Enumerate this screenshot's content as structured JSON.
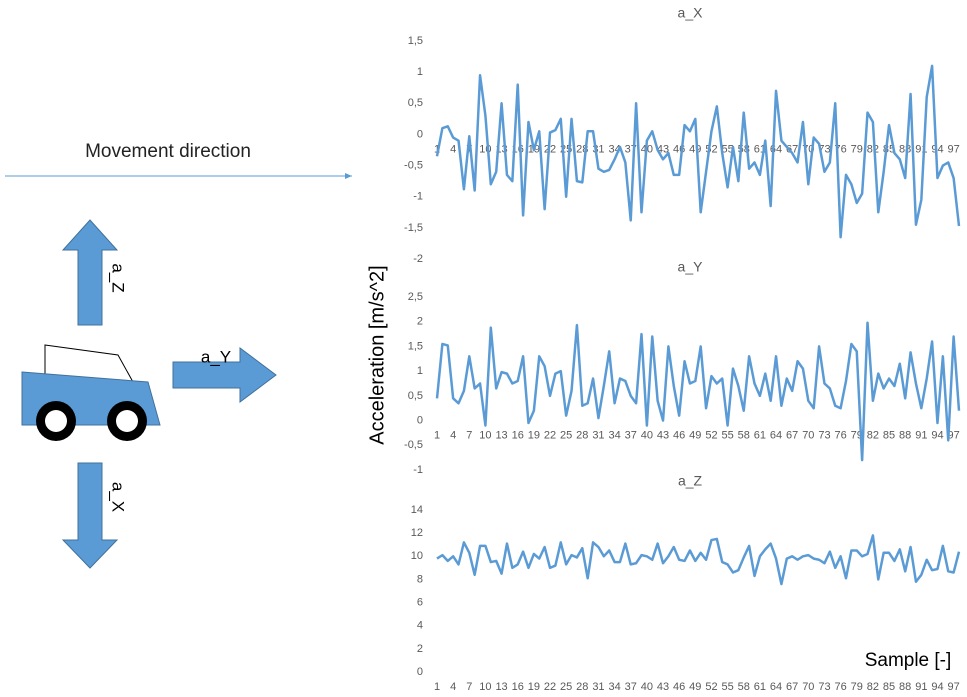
{
  "diagram": {
    "movement_label": "Movement direction",
    "arrows": [
      "a_Z",
      "a_Y",
      "a_X"
    ]
  },
  "chart_data": [
    {
      "type": "line",
      "title": "a_X",
      "color": "#5b9bd5",
      "grid": false,
      "categories": [
        1,
        null,
        null,
        4,
        null,
        null,
        7,
        null,
        null,
        10,
        null,
        null,
        13,
        null,
        null,
        16,
        null,
        null,
        19,
        null,
        null,
        22,
        null,
        null,
        25,
        null,
        null,
        28,
        null,
        null,
        31,
        null,
        null,
        34,
        null,
        null,
        37,
        null,
        null,
        40,
        null,
        null,
        43,
        null,
        null,
        46,
        null,
        null,
        49,
        null,
        null,
        52,
        null,
        null,
        55,
        null,
        null,
        58,
        null,
        null,
        61,
        null,
        null,
        64,
        null,
        null,
        67,
        null,
        null,
        70,
        null,
        null,
        73,
        null,
        null,
        76,
        null,
        null,
        79,
        null,
        null,
        82,
        null,
        null,
        85,
        null,
        null,
        88,
        null,
        null,
        91,
        null,
        null,
        94,
        null,
        null,
        97,
        null
      ],
      "values": [
        -0.35,
        0.1,
        0.13,
        -0.05,
        -0.1,
        -0.88,
        -0.03,
        -0.9,
        0.95,
        0.3,
        -0.8,
        -0.6,
        0.5,
        -0.65,
        -0.75,
        0.8,
        -1.3,
        0.2,
        -0.25,
        0.05,
        -1.2,
        0.03,
        0.07,
        0.25,
        -1.0,
        0.25,
        -0.75,
        -0.77,
        0.05,
        0.05,
        -0.55,
        -0.6,
        -0.57,
        -0.4,
        -0.2,
        -0.45,
        -1.38,
        0.5,
        -1.25,
        -0.1,
        0.05,
        -0.25,
        -0.4,
        -0.3,
        -0.65,
        -0.65,
        0.15,
        0.05,
        0.25,
        -1.25,
        -0.6,
        0.05,
        0.45,
        -0.3,
        -0.85,
        -0.2,
        -0.75,
        0.35,
        -0.55,
        -0.45,
        -0.65,
        -0.1,
        -1.15,
        0.7,
        -0.1,
        -0.2,
        -0.3,
        -0.45,
        0.2,
        -0.8,
        -0.05,
        -0.15,
        -0.6,
        -0.45,
        0.5,
        -1.65,
        -0.65,
        -0.8,
        -1.1,
        -0.95,
        0.35,
        0.2,
        -1.25,
        -0.6,
        0.15,
        -0.3,
        -0.4,
        -0.7,
        0.65,
        -1.45,
        -1.05,
        0.6,
        1.1,
        -0.7,
        -0.5,
        -0.45,
        -0.7,
        -1.47
      ],
      "ylim": [
        -2,
        1.5
      ],
      "yticks": [
        -2,
        {
          "value": -1.5,
          "label": "-1,5"
        },
        -1,
        {
          "value": -0.5,
          "label": "-0,5"
        },
        0,
        {
          "value": 0.5,
          "label": "0,5"
        },
        1,
        {
          "value": 1.5,
          "label": "1,5"
        }
      ]
    },
    {
      "type": "line",
      "title": "a_Y",
      "color": "#5b9bd5",
      "grid": false,
      "ylabel": "Acceleration [m/s^2]",
      "categories": [
        1,
        null,
        null,
        4,
        null,
        null,
        7,
        null,
        null,
        10,
        null,
        null,
        13,
        null,
        null,
        16,
        null,
        null,
        19,
        null,
        null,
        22,
        null,
        null,
        25,
        null,
        null,
        28,
        null,
        null,
        31,
        null,
        null,
        34,
        null,
        null,
        37,
        null,
        null,
        40,
        null,
        null,
        43,
        null,
        null,
        46,
        null,
        null,
        49,
        null,
        null,
        52,
        null,
        null,
        55,
        null,
        null,
        58,
        null,
        null,
        61,
        null,
        null,
        64,
        null,
        null,
        67,
        null,
        null,
        70,
        null,
        null,
        73,
        null,
        null,
        76,
        null,
        null,
        79,
        null,
        null,
        82,
        null,
        null,
        85,
        null,
        null,
        88,
        null,
        null,
        91,
        null,
        null,
        94,
        null,
        null,
        97,
        null
      ],
      "values": [
        0.45,
        1.55,
        1.52,
        0.45,
        0.35,
        0.6,
        1.3,
        0.65,
        0.75,
        -0.1,
        1.88,
        0.65,
        0.98,
        0.95,
        0.75,
        0.8,
        1.3,
        -0.05,
        0.2,
        1.3,
        1.1,
        0.5,
        0.95,
        1.0,
        0.1,
        0.6,
        1.93,
        0.3,
        0.35,
        0.85,
        0.05,
        0.7,
        1.4,
        0.35,
        0.85,
        0.8,
        0.5,
        0.35,
        1.75,
        -0.1,
        1.7,
        0.4,
        0.0,
        1.5,
        0.7,
        0.1,
        1.2,
        0.75,
        0.8,
        1.5,
        0.25,
        0.9,
        0.75,
        0.85,
        -0.1,
        1.05,
        0.7,
        0.2,
        1.3,
        0.75,
        0.5,
        0.95,
        0.4,
        1.3,
        0.3,
        0.85,
        0.6,
        1.2,
        1.05,
        0.4,
        0.25,
        1.5,
        0.75,
        0.65,
        0.3,
        0.25,
        0.8,
        1.55,
        1.4,
        -0.8,
        1.98,
        0.4,
        0.95,
        0.65,
        0.85,
        0.7,
        1.15,
        0.45,
        1.38,
        0.75,
        0.25,
        0.85,
        1.6,
        -0.05,
        1.3,
        -0.4,
        1.7,
        0.2
      ],
      "ylim": [
        -1,
        2.5
      ],
      "yticks": [
        -1,
        {
          "value": -0.5,
          "label": "-0,5"
        },
        0,
        {
          "value": 0.5,
          "label": "0,5"
        },
        1,
        {
          "value": 1.5,
          "label": "1,5"
        },
        2,
        {
          "value": 2.5,
          "label": "2,5"
        }
      ]
    },
    {
      "type": "line",
      "title": "a_Z",
      "color": "#5b9bd5",
      "grid": false,
      "xlabel": "Sample [-]",
      "categories": [
        1,
        null,
        null,
        4,
        null,
        null,
        7,
        null,
        null,
        10,
        null,
        null,
        13,
        null,
        null,
        16,
        null,
        null,
        19,
        null,
        null,
        22,
        null,
        null,
        25,
        null,
        null,
        28,
        null,
        null,
        31,
        null,
        null,
        34,
        null,
        null,
        37,
        null,
        null,
        40,
        null,
        null,
        43,
        null,
        null,
        46,
        null,
        null,
        49,
        null,
        null,
        52,
        null,
        null,
        55,
        null,
        null,
        58,
        null,
        null,
        61,
        null,
        null,
        64,
        null,
        null,
        67,
        null,
        null,
        70,
        null,
        null,
        73,
        null,
        null,
        76,
        null,
        null,
        79,
        null,
        null,
        82,
        null,
        null,
        85,
        null,
        null,
        88,
        null,
        null,
        91,
        null,
        null,
        94,
        null,
        null,
        97,
        null
      ],
      "values": [
        9.8,
        10.1,
        9.6,
        10.0,
        9.3,
        11.2,
        10.3,
        8.4,
        10.9,
        10.9,
        9.5,
        9.6,
        8.5,
        11.1,
        9.0,
        9.3,
        10.4,
        9.0,
        10.2,
        9.8,
        10.8,
        9.0,
        9.2,
        11.2,
        9.3,
        10.1,
        9.9,
        10.7,
        8.1,
        11.2,
        10.8,
        10.0,
        10.5,
        9.5,
        9.5,
        11.1,
        9.3,
        9.4,
        10.1,
        10.0,
        9.7,
        11.1,
        9.4,
        10.0,
        10.8,
        9.7,
        9.6,
        10.5,
        9.6,
        10.3,
        9.7,
        11.4,
        11.5,
        9.5,
        9.3,
        8.6,
        8.8,
        9.9,
        10.9,
        8.3,
        10.0,
        10.6,
        11.1,
        9.8,
        7.6,
        9.8,
        10.0,
        9.7,
        10.0,
        10.1,
        9.8,
        9.7,
        9.4,
        10.4,
        9.0,
        10.0,
        8.1,
        10.5,
        10.5,
        10.0,
        10.2,
        11.8,
        8.0,
        10.3,
        10.3,
        9.6,
        10.6,
        8.7,
        10.8,
        7.8,
        8.4,
        9.7,
        8.8,
        8.9,
        10.9,
        8.7,
        8.6,
        10.4
      ],
      "ylim": [
        0,
        14
      ],
      "yticks": [
        0,
        2,
        4,
        6,
        8,
        10,
        12,
        14
      ]
    }
  ]
}
